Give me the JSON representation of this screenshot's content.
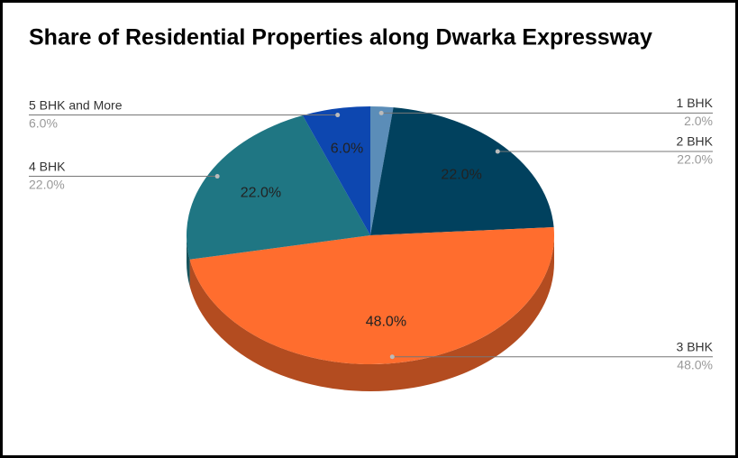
{
  "chart_data": {
    "type": "pie3d",
    "title": "Share of Residential Properties along Dwarka Expressway",
    "categories": [
      "1 BHK",
      "2 BHK",
      "3 BHK",
      "4 BHK",
      "5 BHK and More"
    ],
    "values": [
      2,
      22,
      48,
      22,
      6
    ],
    "value_labels": [
      "2.0%",
      "22.0%",
      "48.0%",
      "22.0%",
      "6.0%"
    ],
    "colors": [
      "#5b8db8",
      "#01415e",
      "#ff6d2e",
      "#1f7683",
      "#0d47b0"
    ]
  }
}
